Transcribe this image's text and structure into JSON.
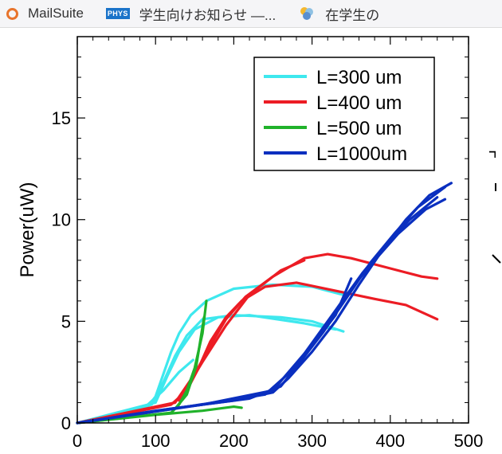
{
  "bookmarks": [
    {
      "label": "MailSuite",
      "icon": "ring-logo-icon"
    },
    {
      "label": "学生向けお知らせ —...",
      "icon": "phys-badge-icon",
      "badge": "PHYS"
    },
    {
      "label": "在学生の",
      "icon": "flower-logo-icon"
    }
  ],
  "chart_data": {
    "type": "line",
    "xlabel": "",
    "ylabel": "Power(uW)",
    "xlim": [
      0,
      500
    ],
    "ylim": [
      0,
      19
    ],
    "xticks": [
      "0",
      "100",
      "200",
      "300",
      "400",
      "500"
    ],
    "yticks": [
      "0",
      "5",
      "10",
      "15"
    ],
    "legend_position": "top-right",
    "series": [
      {
        "name": "L=300 um",
        "color": "#3ee8ee",
        "lines": [
          [
            [
              0,
              0
            ],
            [
              90,
              0.8
            ],
            [
              100,
              1.3
            ],
            [
              110,
              2.4
            ],
            [
              120,
              3.5
            ],
            [
              130,
              4.4
            ],
            [
              145,
              5.3
            ],
            [
              165,
              6
            ],
            [
              200,
              6.6
            ],
            [
              250,
              6.8
            ],
            [
              300,
              6.7
            ],
            [
              340,
              6.3
            ]
          ],
          [
            [
              0,
              0
            ],
            [
              95,
              0.9
            ],
            [
              110,
              2
            ],
            [
              125,
              3.3
            ],
            [
              140,
              4.3
            ],
            [
              160,
              5.1
            ],
            [
              200,
              5.3
            ],
            [
              260,
              5.2
            ],
            [
              300,
              5
            ],
            [
              340,
              4.5
            ]
          ],
          [
            [
              0,
              0
            ],
            [
              100,
              1
            ],
            [
              115,
              2.3
            ],
            [
              130,
              3.5
            ],
            [
              150,
              4.6
            ],
            [
              180,
              5.2
            ],
            [
              220,
              5.3
            ],
            [
              290,
              4.9
            ],
            [
              330,
              4.6
            ]
          ],
          [
            [
              90,
              0.9
            ],
            [
              110,
              1.6
            ],
            [
              130,
              2.5
            ],
            [
              148,
              3.1
            ]
          ]
        ]
      },
      {
        "name": "L=400 um",
        "color": "#ec1c24",
        "lines": [
          [
            [
              0,
              0
            ],
            [
              120,
              0.9
            ],
            [
              140,
              1.6
            ],
            [
              155,
              2.7
            ],
            [
              170,
              4
            ],
            [
              190,
              5.2
            ],
            [
              210,
              6
            ],
            [
              240,
              6.7
            ],
            [
              280,
              6.9
            ],
            [
              330,
              6.5
            ],
            [
              380,
              6.1
            ],
            [
              420,
              5.8
            ],
            [
              460,
              5.1
            ]
          ],
          [
            [
              0,
              0
            ],
            [
              125,
              1
            ],
            [
              150,
              2.4
            ],
            [
              170,
              3.8
            ],
            [
              190,
              5.1
            ],
            [
              215,
              6.2
            ],
            [
              250,
              7.2
            ],
            [
              290,
              8.1
            ],
            [
              320,
              8.3
            ],
            [
              350,
              8.1
            ],
            [
              400,
              7.6
            ],
            [
              440,
              7.2
            ],
            [
              460,
              7.1
            ]
          ],
          [
            [
              130,
              1.1
            ],
            [
              160,
              3
            ],
            [
              190,
              4.8
            ],
            [
              220,
              6.3
            ],
            [
              260,
              7.5
            ],
            [
              290,
              8
            ]
          ]
        ]
      },
      {
        "name": "L=500 um",
        "color": "#20b22a",
        "lines": [
          [
            [
              0,
              0
            ],
            [
              120,
              0.5
            ],
            [
              130,
              0.9
            ],
            [
              140,
              1.6
            ],
            [
              150,
              2.7
            ],
            [
              160,
              4.4
            ],
            [
              165,
              6
            ]
          ],
          [
            [
              0,
              0
            ],
            [
              125,
              0.7
            ],
            [
              140,
              1.4
            ],
            [
              152,
              2.8
            ],
            [
              162,
              5.2
            ]
          ],
          [
            [
              0,
              0
            ],
            [
              100,
              0.4
            ],
            [
              160,
              0.6
            ],
            [
              200,
              0.8
            ],
            [
              210,
              0.75
            ]
          ]
        ]
      },
      {
        "name": "L=1000um",
        "color": "#0a2fbf",
        "lines": [
          [
            [
              0,
              0
            ],
            [
              100,
              0.6
            ],
            [
              200,
              1.1
            ],
            [
              250,
              1.5
            ],
            [
              270,
              2.2
            ],
            [
              300,
              3.5
            ],
            [
              330,
              5
            ],
            [
              360,
              6.8
            ],
            [
              390,
              8.5
            ],
            [
              420,
              10
            ],
            [
              450,
              11.2
            ],
            [
              478,
              11.8
            ]
          ],
          [
            [
              0,
              0
            ],
            [
              120,
              0.7
            ],
            [
              220,
              1.2
            ],
            [
              260,
              1.8
            ],
            [
              285,
              3
            ],
            [
              315,
              4.5
            ],
            [
              345,
              6.2
            ],
            [
              375,
              7.9
            ],
            [
              405,
              9.3
            ],
            [
              435,
              10.6
            ],
            [
              470,
              11.6
            ]
          ],
          [
            [
              0,
              0
            ],
            [
              140,
              0.8
            ],
            [
              240,
              1.4
            ],
            [
              275,
              2.6
            ],
            [
              305,
              4.1
            ],
            [
              335,
              5.8
            ],
            [
              365,
              7.4
            ],
            [
              395,
              8.8
            ],
            [
              425,
              10
            ],
            [
              460,
              11.1
            ]
          ],
          [
            [
              0,
              0
            ],
            [
              160,
              0.9
            ],
            [
              250,
              1.6
            ],
            [
              290,
              3.4
            ],
            [
              320,
              5
            ],
            [
              350,
              6.6
            ],
            [
              380,
              8
            ],
            [
              410,
              9.3
            ],
            [
              445,
              10.5
            ],
            [
              470,
              11
            ]
          ],
          [
            [
              300,
              3.8
            ],
            [
              330,
              5.3
            ],
            [
              350,
              7.1
            ]
          ]
        ]
      }
    ]
  }
}
